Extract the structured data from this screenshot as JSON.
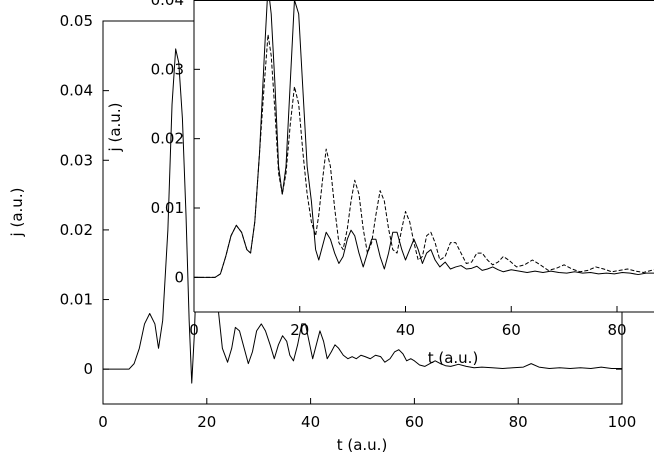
{
  "chart_data": [
    {
      "type": "line",
      "xlabel": "t (a.u.)",
      "ylabel": "j (a.u.)",
      "xlim": [
        0,
        100
      ],
      "ylim": [
        -0.005,
        0.05
      ],
      "xticks": [
        "0",
        "20",
        "40",
        "60",
        "80",
        "100"
      ],
      "yticks": [
        "0",
        "0.01",
        "0.02",
        "0.03",
        "0.04",
        "0.05"
      ],
      "grid": false,
      "series": [
        {
          "style": "solid",
          "points": [
            [
              0,
              0
            ],
            [
              5,
              0
            ],
            [
              6,
              0.0008
            ],
            [
              7,
              0.003
            ],
            [
              8,
              0.0065
            ],
            [
              9,
              0.008
            ],
            [
              10,
              0.0065
            ],
            [
              10.7,
              0.003
            ],
            [
              11.5,
              0.007
            ],
            [
              12.5,
              0.02
            ],
            [
              13.3,
              0.038
            ],
            [
              14,
              0.046
            ],
            [
              14.6,
              0.044
            ],
            [
              15.3,
              0.036
            ],
            [
              16,
              0.022
            ],
            [
              16.6,
              0.007
            ],
            [
              17.1,
              -0.002
            ],
            [
              17.6,
              0.005
            ],
            [
              18.4,
              0.022
            ],
            [
              19.2,
              0.036
            ],
            [
              19.8,
              0.04
            ],
            [
              20.5,
              0.036
            ],
            [
              21.3,
              0.022
            ],
            [
              22,
              0.01
            ],
            [
              23,
              0.003
            ],
            [
              24,
              0.001
            ],
            [
              24.8,
              0.003
            ],
            [
              25.5,
              0.006
            ],
            [
              26.3,
              0.0055
            ],
            [
              27.2,
              0.003
            ],
            [
              28,
              0.0008
            ],
            [
              28.8,
              0.0025
            ],
            [
              29.6,
              0.0055
            ],
            [
              30.5,
              0.0065
            ],
            [
              31.3,
              0.0055
            ],
            [
              32.2,
              0.0035
            ],
            [
              33,
              0.0015
            ],
            [
              33.8,
              0.0035
            ],
            [
              34.6,
              0.0048
            ],
            [
              35.4,
              0.004
            ],
            [
              36,
              0.002
            ],
            [
              36.7,
              0.0012
            ],
            [
              37.5,
              0.0035
            ],
            [
              38.3,
              0.0065
            ],
            [
              39,
              0.0065
            ],
            [
              39.7,
              0.004
            ],
            [
              40.4,
              0.0015
            ],
            [
              41.1,
              0.0035
            ],
            [
              41.8,
              0.0055
            ],
            [
              42.5,
              0.004
            ],
            [
              43.2,
              0.0015
            ],
            [
              44,
              0.0025
            ],
            [
              44.7,
              0.0035
            ],
            [
              45.4,
              0.003
            ],
            [
              46.3,
              0.002
            ],
            [
              47.2,
              0.0015
            ],
            [
              48,
              0.0018
            ],
            [
              48.8,
              0.0015
            ],
            [
              49.7,
              0.002
            ],
            [
              50.5,
              0.0018
            ],
            [
              51.5,
              0.0015
            ],
            [
              52.5,
              0.002
            ],
            [
              53.5,
              0.0018
            ],
            [
              54.3,
              0.001
            ],
            [
              55.3,
              0.0015
            ],
            [
              56.2,
              0.0025
            ],
            [
              57,
              0.0028
            ],
            [
              57.8,
              0.0022
            ],
            [
              58.5,
              0.0012
            ],
            [
              59.3,
              0.0015
            ],
            [
              60,
              0.0012
            ],
            [
              61,
              0.0006
            ],
            [
              62,
              0.0004
            ],
            [
              63,
              0.0008
            ],
            [
              64,
              0.0012
            ],
            [
              65,
              0.0008
            ],
            [
              66,
              0.0005
            ],
            [
              67,
              0.0004
            ],
            [
              68.5,
              0.0007
            ],
            [
              70,
              0.0004
            ],
            [
              71.5,
              0.0002
            ],
            [
              73,
              0.0003
            ],
            [
              75,
              0.0002
            ],
            [
              77,
              0.0001
            ],
            [
              79,
              0.0002
            ],
            [
              81,
              0.0003
            ],
            [
              82.5,
              0.0008
            ],
            [
              84,
              0.0003
            ],
            [
              86,
              0.0001
            ],
            [
              88,
              0.0002
            ],
            [
              90,
              0.0001
            ],
            [
              92,
              0.0002
            ],
            [
              94,
              0.0001
            ],
            [
              96,
              0.0003
            ],
            [
              98,
              0.0001
            ],
            [
              100,
              0.0001
            ]
          ]
        }
      ]
    },
    {
      "type": "line",
      "xlabel": "t (a.u.)",
      "ylabel": "j (a.u.)",
      "xlim": [
        0,
        87
      ],
      "ylim": [
        -0.005,
        0.04
      ],
      "xticks": [
        "0",
        "20",
        "40",
        "60",
        "80"
      ],
      "yticks": [
        "0",
        "0.01",
        "0.02",
        "0.03",
        "0.04"
      ],
      "grid": false,
      "series": [
        {
          "style": "solid",
          "points": [
            [
              0,
              0
            ],
            [
              4,
              0
            ],
            [
              5,
              0.0005
            ],
            [
              6,
              0.003
            ],
            [
              7,
              0.006
            ],
            [
              8,
              0.0075
            ],
            [
              9,
              0.0065
            ],
            [
              10,
              0.004
            ],
            [
              10.7,
              0.0035
            ],
            [
              11.5,
              0.008
            ],
            [
              12.4,
              0.018
            ],
            [
              13.3,
              0.032
            ],
            [
              14,
              0.042
            ],
            [
              14.6,
              0.038
            ],
            [
              15.3,
              0.028
            ],
            [
              16,
              0.016
            ],
            [
              16.7,
              0.012
            ],
            [
              17.4,
              0.016
            ],
            [
              18.2,
              0.028
            ],
            [
              19,
              0.04
            ],
            [
              19.8,
              0.038
            ],
            [
              20.6,
              0.027
            ],
            [
              21.4,
              0.016
            ],
            [
              22.2,
              0.011
            ],
            [
              23,
              0.004
            ],
            [
              23.6,
              0.0025
            ],
            [
              24.3,
              0.0045
            ],
            [
              25,
              0.0065
            ],
            [
              25.8,
              0.0055
            ],
            [
              26.6,
              0.0035
            ],
            [
              27.4,
              0.002
            ],
            [
              28.2,
              0.003
            ],
            [
              29,
              0.0055
            ],
            [
              29.7,
              0.0068
            ],
            [
              30.4,
              0.006
            ],
            [
              31.2,
              0.0035
            ],
            [
              32,
              0.0015
            ],
            [
              32.8,
              0.0035
            ],
            [
              33.6,
              0.0055
            ],
            [
              34.4,
              0.0055
            ],
            [
              35.2,
              0.003
            ],
            [
              36,
              0.0012
            ],
            [
              36.8,
              0.0035
            ],
            [
              37.6,
              0.0065
            ],
            [
              38.4,
              0.0065
            ],
            [
              39.3,
              0.004
            ],
            [
              40,
              0.0025
            ],
            [
              40.8,
              0.004
            ],
            [
              41.6,
              0.0055
            ],
            [
              42.4,
              0.004
            ],
            [
              43.2,
              0.002
            ],
            [
              44,
              0.0035
            ],
            [
              44.8,
              0.004
            ],
            [
              45.6,
              0.0025
            ],
            [
              46.5,
              0.0015
            ],
            [
              47.5,
              0.0022
            ],
            [
              48.5,
              0.0012
            ],
            [
              49.5,
              0.0015
            ],
            [
              50.5,
              0.0017
            ],
            [
              51.5,
              0.0012
            ],
            [
              52.5,
              0.0013
            ],
            [
              53.5,
              0.0016
            ],
            [
              54.5,
              0.001
            ],
            [
              55.5,
              0.0012
            ],
            [
              56.5,
              0.0015
            ],
            [
              57.5,
              0.0011
            ],
            [
              58.5,
              0.0008
            ],
            [
              60,
              0.0011
            ],
            [
              61.5,
              0.0009
            ],
            [
              63,
              0.0007
            ],
            [
              64.5,
              0.0009
            ],
            [
              66,
              0.0007
            ],
            [
              67.5,
              0.0009
            ],
            [
              69,
              0.0007
            ],
            [
              70.5,
              0.0006
            ],
            [
              72,
              0.0008
            ],
            [
              73.5,
              0.0006
            ],
            [
              75,
              0.0007
            ],
            [
              76.5,
              0.0005
            ],
            [
              78,
              0.0006
            ],
            [
              79.5,
              0.0005
            ],
            [
              81,
              0.0007
            ],
            [
              82.5,
              0.0006
            ],
            [
              84,
              0.0004
            ],
            [
              85.5,
              0.0006
            ],
            [
              87,
              0.0006
            ]
          ]
        },
        {
          "style": "dashed",
          "points": [
            [
              0,
              0
            ],
            [
              4,
              0
            ],
            [
              5,
              0.0005
            ],
            [
              6,
              0.003
            ],
            [
              7,
              0.006
            ],
            [
              8,
              0.0075
            ],
            [
              9,
              0.0065
            ],
            [
              10,
              0.004
            ],
            [
              10.7,
              0.0035
            ],
            [
              11.5,
              0.008
            ],
            [
              12.4,
              0.018
            ],
            [
              13.3,
              0.028
            ],
            [
              14,
              0.035
            ],
            [
              14.6,
              0.032
            ],
            [
              15.3,
              0.024
            ],
            [
              16,
              0.015
            ],
            [
              16.7,
              0.012
            ],
            [
              17.4,
              0.015
            ],
            [
              18.2,
              0.022
            ],
            [
              19,
              0.0275
            ],
            [
              19.8,
              0.025
            ],
            [
              20.6,
              0.018
            ],
            [
              21.4,
              0.012
            ],
            [
              22.2,
              0.008
            ],
            [
              23,
              0.006
            ],
            [
              23.6,
              0.009
            ],
            [
              24.3,
              0.014
            ],
            [
              25,
              0.0185
            ],
            [
              25.8,
              0.016
            ],
            [
              26.6,
              0.01
            ],
            [
              27.4,
              0.005
            ],
            [
              28.2,
              0.004
            ],
            [
              29,
              0.007
            ],
            [
              29.7,
              0.011
            ],
            [
              30.4,
              0.014
            ],
            [
              31.2,
              0.012
            ],
            [
              32,
              0.007
            ],
            [
              32.8,
              0.0035
            ],
            [
              33.6,
              0.005
            ],
            [
              34.4,
              0.009
            ],
            [
              35.2,
              0.0125
            ],
            [
              36,
              0.011
            ],
            [
              36.8,
              0.007
            ],
            [
              37.6,
              0.004
            ],
            [
              38.4,
              0.0035
            ],
            [
              39.3,
              0.007
            ],
            [
              40,
              0.0095
            ],
            [
              40.8,
              0.008
            ],
            [
              41.6,
              0.005
            ],
            [
              42.4,
              0.0025
            ],
            [
              43.2,
              0.003
            ],
            [
              44,
              0.006
            ],
            [
              44.8,
              0.0065
            ],
            [
              45.6,
              0.005
            ],
            [
              46.5,
              0.0025
            ],
            [
              47.5,
              0.003
            ],
            [
              48.5,
              0.005
            ],
            [
              49.5,
              0.005
            ],
            [
              50.5,
              0.0035
            ],
            [
              51.5,
              0.002
            ],
            [
              52.5,
              0.0022
            ],
            [
              53.5,
              0.0035
            ],
            [
              54.5,
              0.0035
            ],
            [
              55.5,
              0.0025
            ],
            [
              56.5,
              0.0018
            ],
            [
              57.5,
              0.0022
            ],
            [
              58.5,
              0.003
            ],
            [
              59.5,
              0.0025
            ],
            [
              61,
              0.0015
            ],
            [
              62.5,
              0.0018
            ],
            [
              64,
              0.0025
            ],
            [
              65.5,
              0.0018
            ],
            [
              67,
              0.001
            ],
            [
              68.5,
              0.0013
            ],
            [
              70,
              0.0018
            ],
            [
              71.5,
              0.0012
            ],
            [
              73,
              0.0008
            ],
            [
              74.5,
              0.001
            ],
            [
              76,
              0.0015
            ],
            [
              77.5,
              0.0012
            ],
            [
              79,
              0.0008
            ],
            [
              80.5,
              0.001
            ],
            [
              82,
              0.0012
            ],
            [
              83.5,
              0.0009
            ],
            [
              85,
              0.0007
            ],
            [
              86,
              0.0009
            ],
            [
              87,
              0.0011
            ]
          ]
        }
      ]
    }
  ]
}
